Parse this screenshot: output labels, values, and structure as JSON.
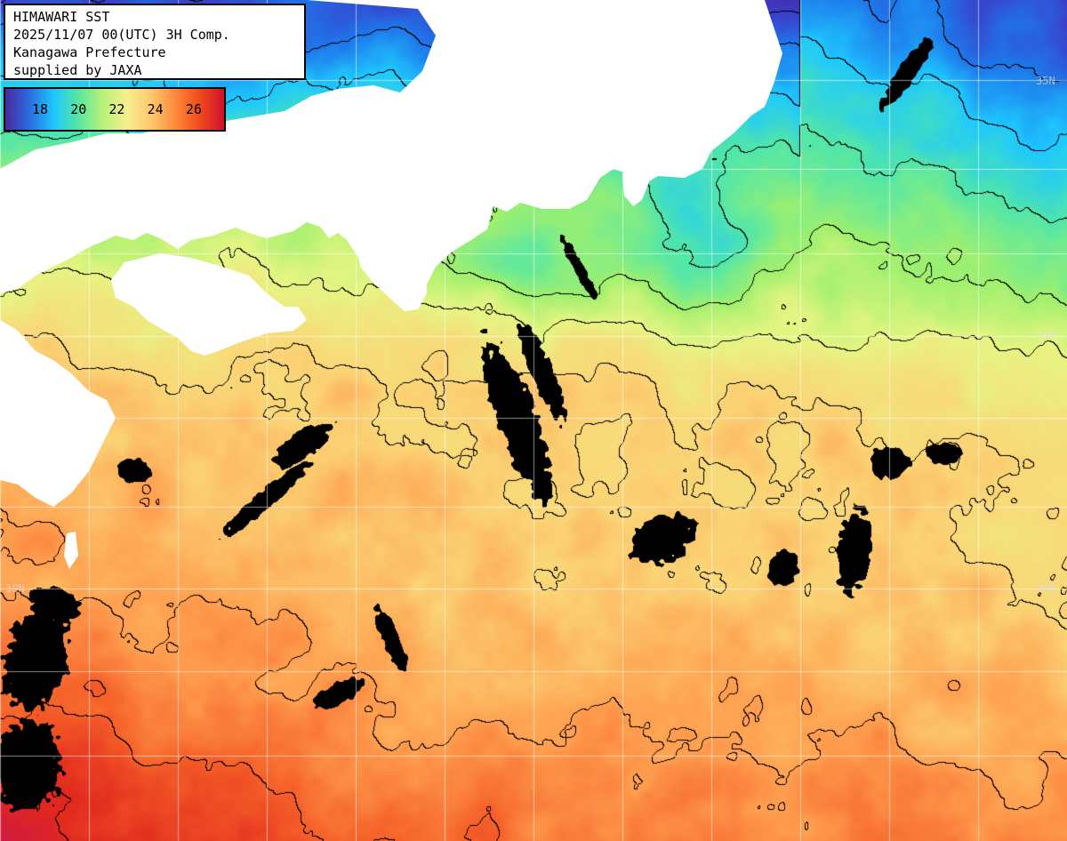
{
  "info": {
    "line1": "HIMAWARI SST",
    "line2": "2025/11/07 00(UTC) 3H Comp.",
    "line3": "Kanagawa Prefecture",
    "line4": "supplied by JAXA"
  },
  "legend": {
    "ticks": [
      "18",
      "20",
      "22",
      "24",
      "26"
    ],
    "colors": [
      "#4a2aa0",
      "#2a6ee0",
      "#1ec8ff",
      "#58e6a0",
      "#b8f27a",
      "#f6f090",
      "#ffc870",
      "#ff8a3a",
      "#f04a1e",
      "#d01030"
    ]
  },
  "grid": {
    "labels": {
      "lat35": "35N",
      "lat33": "33N",
      "lat30_left": "30N",
      "lat30_right": "30N"
    }
  },
  "map": {
    "land_color": "#ffffff",
    "cloud_color": "#000000",
    "grid_color": "#ffffff",
    "contour_color": "#000000"
  }
}
